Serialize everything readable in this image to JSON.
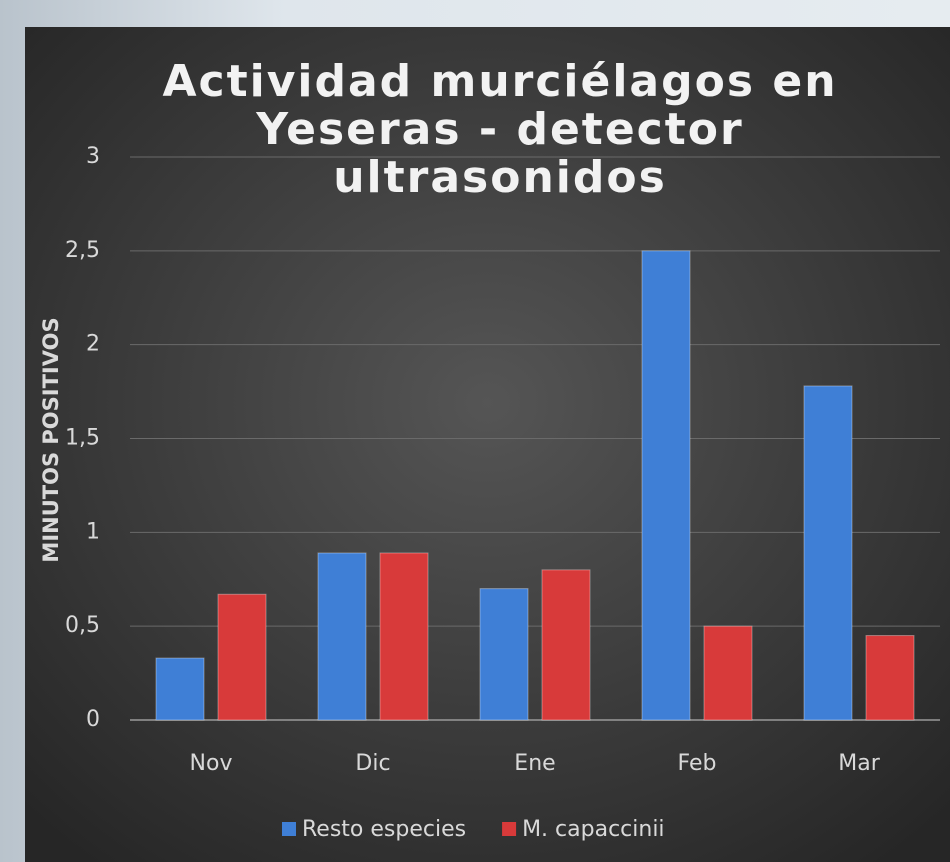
{
  "chart_data": {
    "type": "bar",
    "title": "Actividad murciélagos en Yeseras - detector ultrasonidos",
    "y_label": "MINUTOS POSITIVOS",
    "categories": [
      "Nov",
      "Dic",
      "Ene",
      "Feb",
      "Mar"
    ],
    "series": [
      {
        "name": "Resto especies",
        "color": "#3f7fd6",
        "values": [
          0.33,
          0.89,
          0.7,
          2.5,
          1.78
        ]
      },
      {
        "name": "M. capaccinii",
        "color": "#d83a3a",
        "values": [
          0.67,
          0.89,
          0.8,
          0.5,
          0.45
        ]
      }
    ],
    "ylim": [
      0,
      3
    ],
    "yticks": [
      0,
      {
        "value": 0.5,
        "label": "0,5"
      },
      1,
      {
        "value": 1.5,
        "label": "1,5"
      },
      2,
      {
        "value": 2.5,
        "label": "2,5"
      },
      3
    ],
    "grid": true,
    "legend": "bottom"
  }
}
